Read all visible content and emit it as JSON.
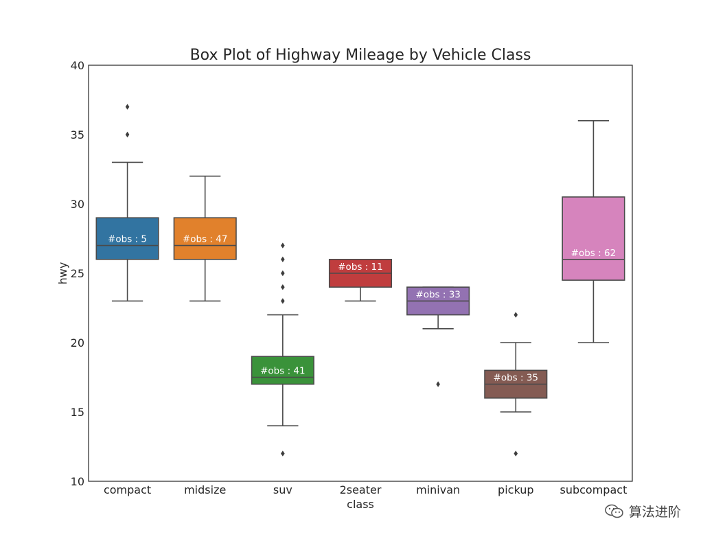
{
  "chart_data": {
    "type": "box",
    "title": "Box Plot of Highway Mileage by Vehicle Class",
    "xlabel": "class",
    "ylabel": "hwy",
    "ylim": [
      10,
      40
    ],
    "yticks": [
      10,
      15,
      20,
      25,
      30,
      35,
      40
    ],
    "categories": [
      "compact",
      "midsize",
      "suv",
      "2seater",
      "minivan",
      "pickup",
      "subcompact"
    ],
    "boxes": [
      {
        "category": "compact",
        "color": "#3274a1",
        "whislo": 23,
        "q1": 26,
        "median": 27,
        "q3": 29,
        "whishi": 33,
        "fliers": [
          35,
          37
        ],
        "obs_label": "#obs : 5"
      },
      {
        "category": "midsize",
        "color": "#e1812c",
        "whislo": 23,
        "q1": 26,
        "median": 27,
        "q3": 29,
        "whishi": 32,
        "fliers": [],
        "obs_label": "#obs : 47"
      },
      {
        "category": "suv",
        "color": "#3a923a",
        "whislo": 14,
        "q1": 17,
        "median": 17.5,
        "q3": 19,
        "whishi": 22,
        "fliers": [
          12,
          23,
          24,
          25,
          26,
          27
        ],
        "obs_label": "#obs : 41"
      },
      {
        "category": "2seater",
        "color": "#c03d3e",
        "whislo": 23,
        "q1": 24,
        "median": 25,
        "q3": 26,
        "whishi": 26,
        "fliers": [],
        "obs_label": "#obs : 11"
      },
      {
        "category": "minivan",
        "color": "#9372b2",
        "whislo": 21,
        "q1": 22,
        "median": 23,
        "q3": 24,
        "whishi": 24,
        "fliers": [
          17
        ],
        "obs_label": "#obs : 33"
      },
      {
        "category": "pickup",
        "color": "#845b53",
        "whislo": 15,
        "q1": 16,
        "median": 17,
        "q3": 18,
        "whishi": 20,
        "fliers": [
          12,
          22
        ],
        "obs_label": "#obs : 35"
      },
      {
        "category": "subcompact",
        "color": "#d684bd",
        "whislo": 20,
        "q1": 24.5,
        "median": 26,
        "q3": 30.5,
        "whishi": 36,
        "fliers": [],
        "obs_label": "#obs : 62"
      }
    ]
  },
  "watermark": {
    "text": "算法进阶",
    "icon": "wechat-icon"
  }
}
